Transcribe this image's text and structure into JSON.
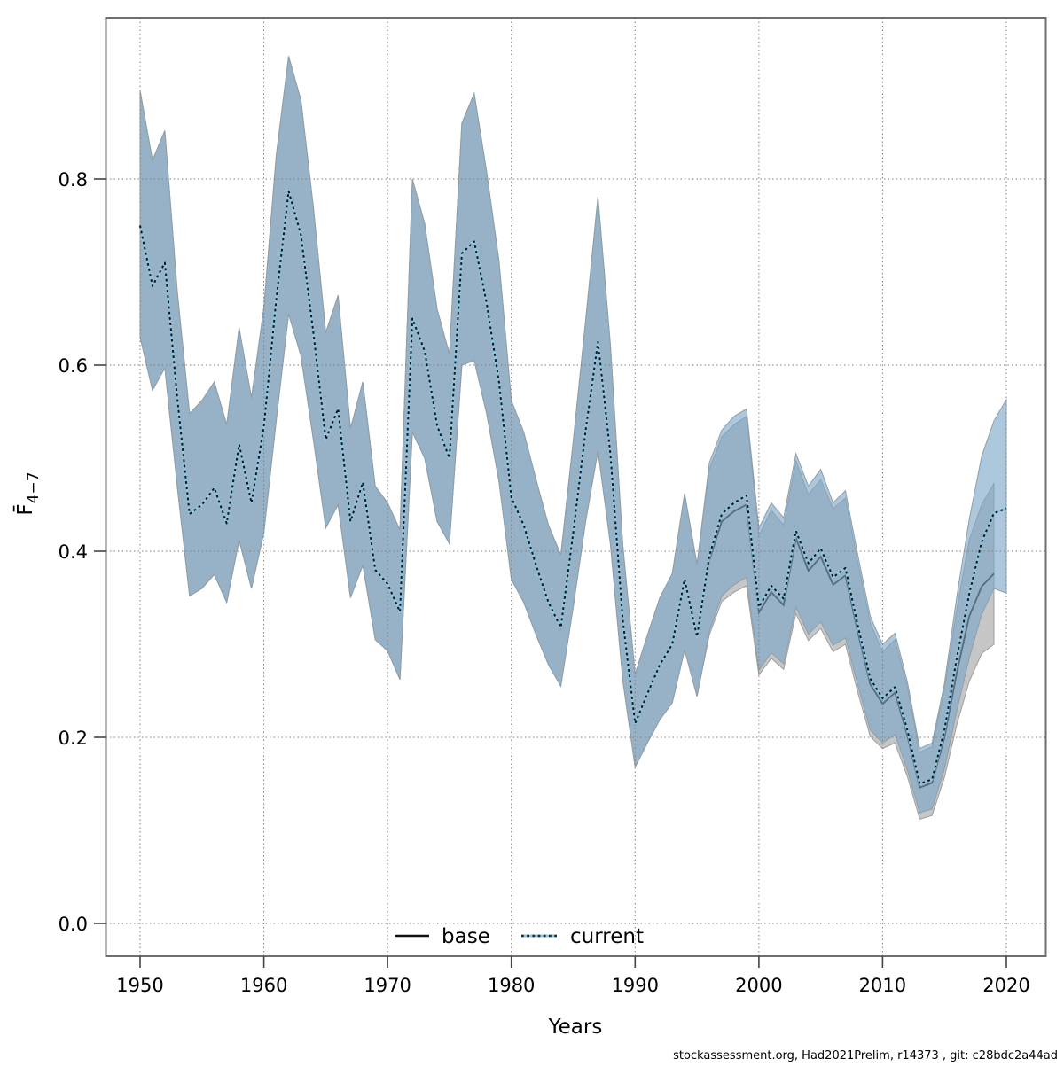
{
  "figure": {
    "xlabel": "Years",
    "ylabel_main": "F̄",
    "ylabel_sub": "4−7",
    "footer": "stockassessment.org, Had2021Prelim, r14373 , git: c28bdc2a44ad"
  },
  "legend": {
    "position": "bottom-center-inside",
    "items": [
      {
        "label": "base",
        "line_style": "solid",
        "line_color": "#111111"
      },
      {
        "label": "current",
        "line_style": "dotted",
        "line_color": "#2e76a8"
      }
    ]
  },
  "axes": {
    "x_ticks": [
      "1950",
      "1960",
      "1970",
      "1980",
      "1990",
      "2000",
      "2010",
      "2020"
    ],
    "y_ticks": [
      "0.0",
      "0.2",
      "0.4",
      "0.6",
      "0.8"
    ],
    "x_range": [
      1947.2,
      2023.2
    ],
    "y_range": [
      -0.035,
      0.973
    ],
    "grid": "dotted"
  },
  "colors": {
    "current_band_fill": "rgba(122,166,198,0.62)",
    "current_band_edge": "#8f9ea8",
    "base_band_fill": "#c6c6c6",
    "base_band_edge": "#9e9e9e",
    "base_line": "#111111",
    "current_line_dash": "#101418",
    "current_line_under": "#8ec6e2",
    "frame": "#6e6e6e",
    "gridline": "#7d7d7d"
  },
  "chart_data": {
    "type": "line",
    "title": "",
    "xlabel": "Years",
    "ylabel": "Fbar(4-7)",
    "legend_position": "bottom-center-inside",
    "grid": true,
    "xlim": [
      1947.2,
      2023.2
    ],
    "ylim": [
      -0.035,
      0.973
    ],
    "years": [
      1950,
      1951,
      1952,
      1953,
      1954,
      1955,
      1956,
      1957,
      1958,
      1959,
      1960,
      1961,
      1962,
      1963,
      1964,
      1965,
      1966,
      1967,
      1968,
      1969,
      1970,
      1971,
      1972,
      1973,
      1974,
      1975,
      1976,
      1977,
      1978,
      1979,
      1980,
      1981,
      1982,
      1983,
      1984,
      1985,
      1986,
      1987,
      1988,
      1989,
      1990,
      1991,
      1992,
      1993,
      1994,
      1995,
      1996,
      1997,
      1998,
      1999,
      2000,
      2001,
      2002,
      2003,
      2004,
      2005,
      2006,
      2007,
      2008,
      2009,
      2010,
      2011,
      2012,
      2013,
      2014,
      2015,
      2016,
      2017,
      2018,
      2019,
      2020
    ],
    "series": [
      {
        "name": "current",
        "style": "dotted",
        "values": [
          0.75,
          0.685,
          0.71,
          0.565,
          0.44,
          0.45,
          0.468,
          0.43,
          0.515,
          0.452,
          0.534,
          0.67,
          0.787,
          0.74,
          0.635,
          0.52,
          0.553,
          0.432,
          0.474,
          0.38,
          0.365,
          0.335,
          0.65,
          0.615,
          0.535,
          0.5,
          0.72,
          0.733,
          0.667,
          0.582,
          0.458,
          0.428,
          0.385,
          0.345,
          0.318,
          0.42,
          0.53,
          0.625,
          0.505,
          0.327,
          0.215,
          0.247,
          0.278,
          0.3,
          0.37,
          0.308,
          0.395,
          0.44,
          0.452,
          0.46,
          0.34,
          0.363,
          0.349,
          0.422,
          0.387,
          0.403,
          0.372,
          0.382,
          0.32,
          0.263,
          0.242,
          0.254,
          0.208,
          0.15,
          0.155,
          0.208,
          0.286,
          0.354,
          0.41,
          0.441,
          0.446
        ],
        "ci_lower": [
          0.63,
          0.573,
          0.597,
          0.47,
          0.352,
          0.36,
          0.375,
          0.345,
          0.412,
          0.36,
          0.42,
          0.54,
          0.655,
          0.61,
          0.52,
          0.425,
          0.45,
          0.35,
          0.385,
          0.305,
          0.293,
          0.262,
          0.528,
          0.5,
          0.432,
          0.408,
          0.6,
          0.605,
          0.548,
          0.475,
          0.37,
          0.345,
          0.31,
          0.278,
          0.255,
          0.34,
          0.432,
          0.508,
          0.408,
          0.262,
          0.168,
          0.194,
          0.219,
          0.237,
          0.294,
          0.244,
          0.314,
          0.352,
          0.364,
          0.372,
          0.272,
          0.291,
          0.279,
          0.34,
          0.311,
          0.324,
          0.299,
          0.307,
          0.256,
          0.208,
          0.194,
          0.203,
          0.165,
          0.119,
          0.123,
          0.166,
          0.229,
          0.285,
          0.332,
          0.36,
          0.355
        ],
        "ci_upper": [
          0.895,
          0.82,
          0.852,
          0.68,
          0.548,
          0.562,
          0.582,
          0.536,
          0.64,
          0.565,
          0.662,
          0.825,
          0.932,
          0.885,
          0.77,
          0.635,
          0.675,
          0.532,
          0.582,
          0.47,
          0.452,
          0.423,
          0.8,
          0.752,
          0.66,
          0.612,
          0.86,
          0.892,
          0.808,
          0.712,
          0.562,
          0.528,
          0.477,
          0.428,
          0.396,
          0.518,
          0.648,
          0.781,
          0.622,
          0.408,
          0.268,
          0.31,
          0.35,
          0.376,
          0.462,
          0.386,
          0.495,
          0.53,
          0.545,
          0.553,
          0.425,
          0.452,
          0.436,
          0.505,
          0.47,
          0.488,
          0.452,
          0.465,
          0.396,
          0.33,
          0.3,
          0.312,
          0.26,
          0.188,
          0.194,
          0.258,
          0.352,
          0.434,
          0.502,
          0.54,
          0.563
        ]
      },
      {
        "name": "base",
        "style": "solid",
        "values": [
          0.75,
          0.685,
          0.71,
          0.565,
          0.44,
          0.45,
          0.468,
          0.43,
          0.515,
          0.452,
          0.534,
          0.67,
          0.787,
          0.74,
          0.635,
          0.52,
          0.553,
          0.432,
          0.474,
          0.38,
          0.365,
          0.335,
          0.65,
          0.615,
          0.535,
          0.5,
          0.72,
          0.733,
          0.667,
          0.582,
          0.458,
          0.428,
          0.385,
          0.345,
          0.318,
          0.42,
          0.53,
          0.625,
          0.505,
          0.327,
          0.215,
          0.247,
          0.278,
          0.3,
          0.37,
          0.308,
          0.39,
          0.432,
          0.443,
          0.45,
          0.334,
          0.356,
          0.342,
          0.414,
          0.379,
          0.394,
          0.364,
          0.374,
          0.313,
          0.257,
          0.236,
          0.248,
          0.202,
          0.146,
          0.151,
          0.2,
          0.27,
          0.33,
          0.362,
          0.376
        ],
        "ci_lower": [
          0.63,
          0.573,
          0.597,
          0.47,
          0.352,
          0.36,
          0.375,
          0.345,
          0.412,
          0.36,
          0.42,
          0.54,
          0.655,
          0.61,
          0.52,
          0.425,
          0.45,
          0.35,
          0.385,
          0.305,
          0.293,
          0.262,
          0.528,
          0.5,
          0.432,
          0.408,
          0.6,
          0.605,
          0.548,
          0.475,
          0.37,
          0.345,
          0.31,
          0.278,
          0.255,
          0.34,
          0.432,
          0.508,
          0.408,
          0.262,
          0.168,
          0.194,
          0.219,
          0.237,
          0.294,
          0.244,
          0.31,
          0.346,
          0.356,
          0.363,
          0.267,
          0.285,
          0.273,
          0.333,
          0.304,
          0.317,
          0.292,
          0.3,
          0.248,
          0.201,
          0.188,
          0.194,
          0.158,
          0.112,
          0.116,
          0.157,
          0.214,
          0.26,
          0.29,
          0.3
        ],
        "ci_upper": [
          0.895,
          0.82,
          0.852,
          0.68,
          0.548,
          0.562,
          0.582,
          0.536,
          0.64,
          0.565,
          0.662,
          0.825,
          0.932,
          0.885,
          0.77,
          0.635,
          0.675,
          0.532,
          0.582,
          0.47,
          0.452,
          0.423,
          0.8,
          0.752,
          0.66,
          0.612,
          0.86,
          0.892,
          0.808,
          0.712,
          0.562,
          0.528,
          0.477,
          0.428,
          0.396,
          0.518,
          0.648,
          0.781,
          0.622,
          0.408,
          0.268,
          0.31,
          0.35,
          0.376,
          0.462,
          0.386,
          0.488,
          0.523,
          0.536,
          0.545,
          0.417,
          0.444,
          0.428,
          0.497,
          0.461,
          0.477,
          0.446,
          0.457,
          0.388,
          0.323,
          0.292,
          0.305,
          0.254,
          0.184,
          0.19,
          0.252,
          0.338,
          0.412,
          0.45,
          0.473
        ]
      }
    ]
  }
}
